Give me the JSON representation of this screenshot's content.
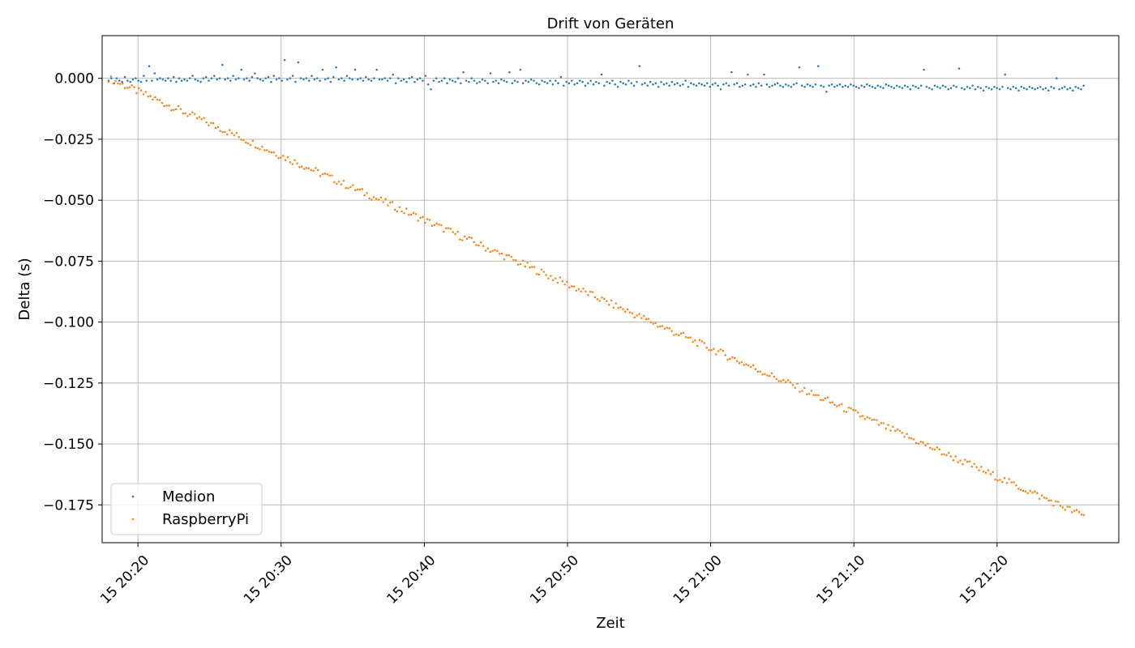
{
  "chart_data": {
    "type": "scatter",
    "title": "Drift von Geräten",
    "xlabel": "Zeit",
    "ylabel": "Delta (s)",
    "xlim": [
      "15 20:17:30",
      "15 21:28:30"
    ],
    "ylim": [
      -0.1905,
      0.0175
    ],
    "x_start": "15 20:17:57",
    "x_end": "15 21:26:03",
    "x_ticks": [
      "15 20:20",
      "15 20:30",
      "15 20:40",
      "15 20:50",
      "15 21:00",
      "15 21:10",
      "15 21:20"
    ],
    "y_ticks": [
      0.0,
      -0.025,
      -0.05,
      -0.075,
      -0.1,
      -0.125,
      -0.15,
      -0.175
    ],
    "y_tick_labels": [
      "0.000",
      "−0.025",
      "−0.050",
      "−0.075",
      "−0.100",
      "−0.125",
      "−0.150",
      "−0.175"
    ],
    "grid": true,
    "legend_position": "lower-left",
    "series": [
      {
        "name": "Medion",
        "color": "#1f77b4",
        "values": [
          -0.001,
          0.0,
          -0.002,
          0.0,
          -0.001,
          -0.0015,
          0.0005,
          -0.001,
          -0.0015,
          -0.0005,
          0.0,
          -0.001,
          -0.0015,
          0.001,
          -0.001,
          0.005,
          -0.001,
          0.002,
          -0.0005,
          0.0,
          -0.0005,
          -0.001,
          0.0,
          -0.001,
          0.0005,
          -0.0015,
          0.0,
          -0.001,
          -0.0005,
          -0.001,
          0.0,
          0.001,
          -0.0005,
          -0.001,
          -0.0015,
          0.0,
          0.0005,
          -0.001,
          0.0,
          0.001,
          -0.0005,
          0.0,
          0.0055,
          -0.0005,
          0.0,
          -0.001,
          0.001,
          -0.0005,
          0.0,
          0.0035,
          -0.0005,
          0.0,
          -0.001,
          0.0005,
          0.002,
          0.0,
          -0.0005,
          -0.001,
          0.0,
          0.0005,
          -0.0015,
          0.001,
          -0.0005,
          0.0,
          -0.001,
          0.0075,
          -0.0005,
          0.0,
          0.001,
          -0.0015,
          0.0065,
          0.0,
          -0.0005,
          0.0,
          -0.001,
          0.001,
          -0.0005,
          0.0,
          -0.001,
          0.0035,
          -0.0005,
          0.0,
          -0.0015,
          0.0005,
          0.0045,
          -0.0005,
          0.0,
          -0.001,
          0.001,
          0.0,
          -0.0005,
          0.0035,
          -0.0005,
          0.0,
          -0.001,
          0.0005,
          -0.0005,
          -0.001,
          0.0,
          0.0035,
          -0.0005,
          -0.0005,
          0.0,
          -0.001,
          0.0,
          0.0015,
          -0.002,
          0.0,
          -0.001,
          -0.0005,
          -0.0015,
          0.0,
          0.0005,
          -0.0015,
          -0.0005,
          0.0,
          -0.001,
          0.001,
          -0.0025,
          -0.0045,
          -0.001,
          0.0,
          -0.0015,
          -0.001,
          0.0,
          -0.002,
          -0.0005,
          -0.001,
          -0.0015,
          0.0,
          -0.002,
          0.0025,
          -0.001,
          -0.0015,
          0.0,
          -0.001,
          -0.002,
          -0.0015,
          -0.0005,
          -0.001,
          -0.002,
          0.002,
          -0.0015,
          -0.001,
          -0.002,
          -0.0005,
          -0.001,
          -0.0015,
          0.0025,
          -0.002,
          -0.001,
          -0.0015,
          0.0035,
          -0.002,
          -0.001,
          -0.0015,
          -0.0005,
          -0.001,
          -0.002,
          -0.0025,
          -0.001,
          -0.0015,
          -0.002,
          -0.001,
          -0.0025,
          -0.001,
          -0.002,
          0.0005,
          -0.003,
          -0.0015,
          -0.002,
          -0.001,
          -0.0025,
          -0.002,
          -0.001,
          -0.0015,
          -0.003,
          -0.002,
          -0.001,
          -0.0025,
          -0.0015,
          -0.002,
          0.0015,
          -0.003,
          -0.0015,
          -0.002,
          -0.001,
          -0.0025,
          -0.0035,
          -0.0015,
          -0.002,
          -0.0025,
          -0.001,
          -0.002,
          -0.003,
          -0.0015,
          0.005,
          -0.0025,
          -0.002,
          -0.003,
          -0.0015,
          -0.0025,
          -0.002,
          -0.0035,
          -0.0015,
          -0.0025,
          -0.002,
          -0.003,
          -0.0015,
          -0.0025,
          -0.002,
          -0.003,
          -0.0025,
          -0.001,
          -0.0035,
          -0.002,
          -0.0025,
          -0.003,
          -0.002,
          -0.0025,
          -0.003,
          -0.002,
          -0.0035,
          -0.0025,
          -0.002,
          -0.003,
          -0.0045,
          -0.0025,
          -0.002,
          -0.003,
          0.0025,
          -0.0025,
          -0.002,
          -0.0035,
          -0.003,
          -0.0025,
          0.0015,
          -0.003,
          -0.0025,
          -0.0035,
          -0.002,
          -0.003,
          0.0015,
          -0.0025,
          -0.0035,
          -0.003,
          -0.0025,
          -0.002,
          -0.003,
          -0.0035,
          -0.0025,
          -0.003,
          -0.0035,
          -0.0025,
          -0.002,
          0.0045,
          -0.003,
          -0.0035,
          -0.0025,
          -0.003,
          -0.0035,
          -0.0025,
          0.005,
          -0.003,
          -0.0035,
          -0.0055,
          -0.003,
          -0.0025,
          -0.0035,
          -0.003,
          -0.0025,
          -0.0035,
          -0.003,
          -0.0035,
          -0.0025,
          -0.003,
          -0.0035,
          -0.004,
          -0.003,
          -0.0035,
          -0.0025,
          -0.003,
          -0.0035,
          -0.004,
          -0.003,
          -0.0035,
          -0.004,
          -0.0025,
          -0.003,
          -0.0035,
          -0.004,
          -0.003,
          -0.0035,
          -0.004,
          -0.003,
          -0.0035,
          -0.0045,
          -0.003,
          -0.0035,
          -0.004,
          -0.003,
          0.0035,
          -0.0035,
          -0.004,
          -0.0045,
          -0.003,
          -0.0035,
          -0.004,
          -0.003,
          -0.0035,
          -0.0045,
          -0.004,
          -0.003,
          -0.0035,
          0.004,
          -0.004,
          -0.0045,
          -0.0035,
          -0.004,
          -0.003,
          -0.0045,
          -0.0035,
          -0.004,
          -0.005,
          -0.0035,
          -0.004,
          -0.0045,
          -0.0035,
          -0.004,
          -0.0045,
          -0.0035,
          0.0015,
          -0.004,
          -0.0045,
          -0.0035,
          -0.004,
          -0.005,
          -0.0035,
          -0.004,
          -0.0045,
          -0.0035,
          -0.004,
          -0.0045,
          -0.004,
          -0.0035,
          -0.0045,
          -0.004,
          -0.005,
          -0.0035,
          -0.004,
          0.0,
          -0.0045,
          -0.004,
          -0.0035,
          -0.0045,
          -0.004,
          -0.005,
          -0.0035,
          -0.004,
          -0.0045,
          -0.003
        ]
      },
      {
        "name": "RaspberryPi",
        "color": "#ff7f0e",
        "values": []
      }
    ],
    "raspberrypi_trend": {
      "start": 0.0,
      "end": -0.1795,
      "n": 420
    }
  }
}
